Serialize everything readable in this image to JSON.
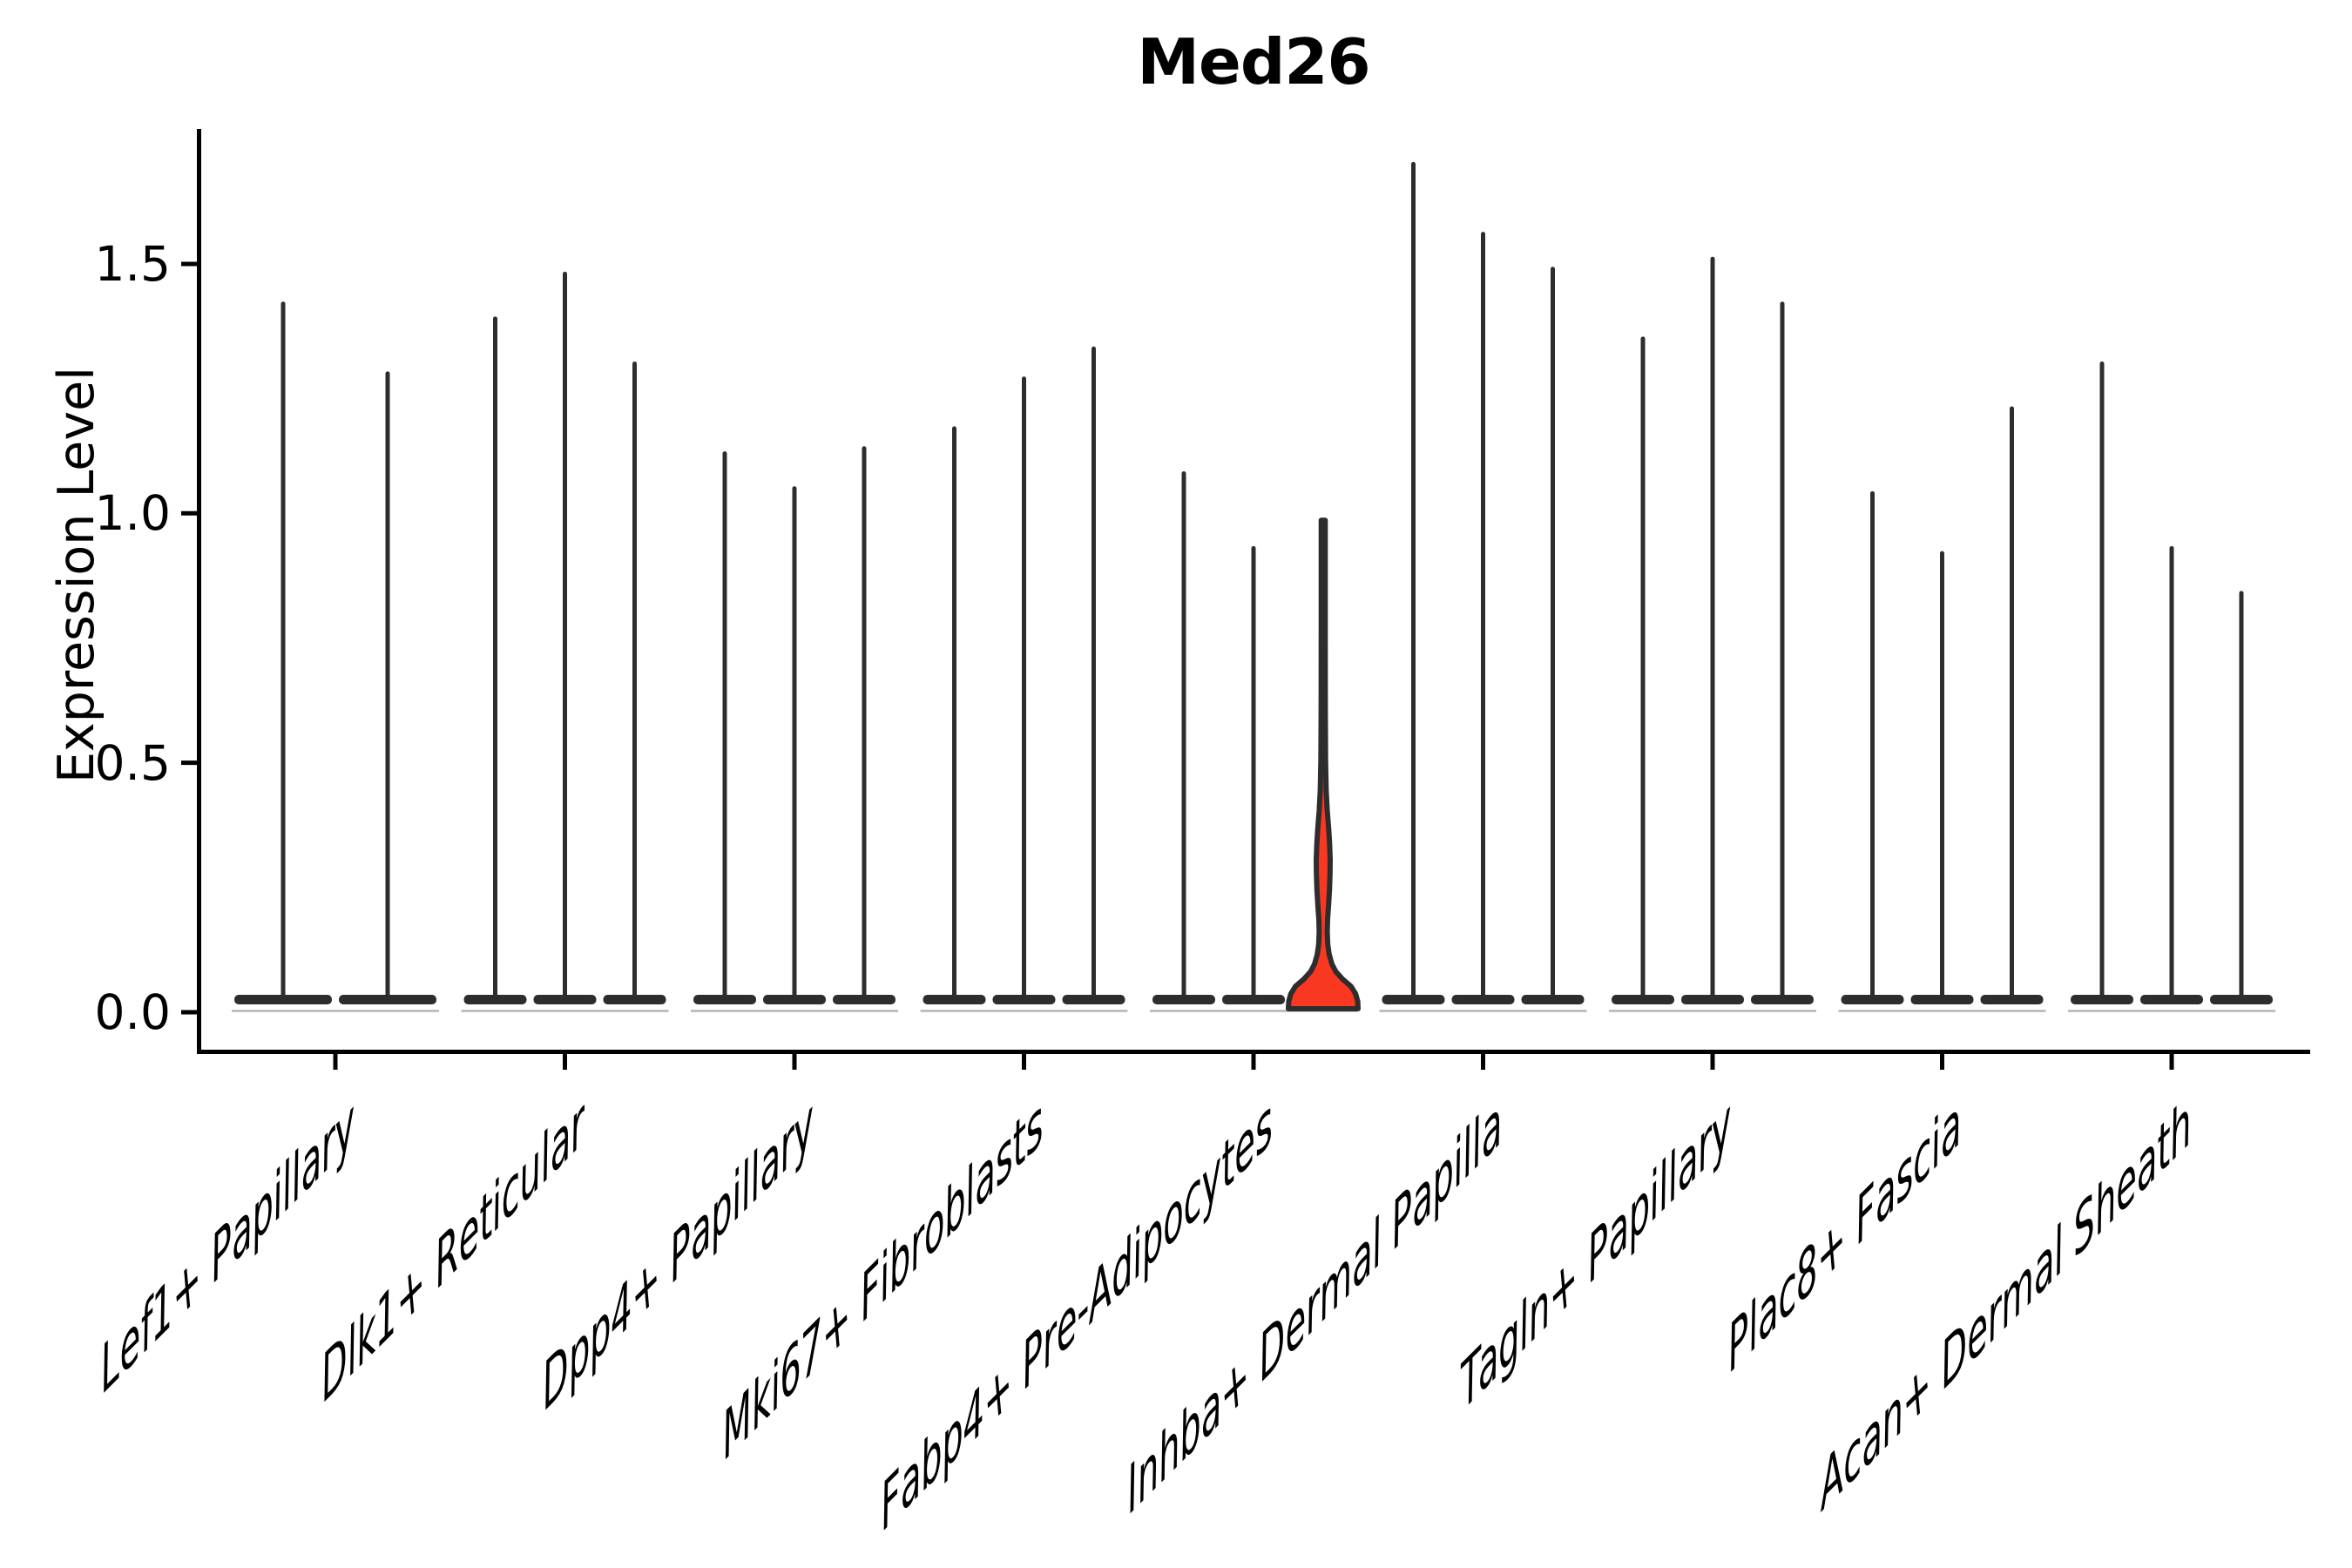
{
  "title": "Med26",
  "y_axis": {
    "label": "Expression Level",
    "tick_labels": [
      "0.0",
      "0.5",
      "1.0",
      "1.5"
    ],
    "tick_values": [
      0.0,
      0.5,
      1.0,
      1.5
    ]
  },
  "chart_data": {
    "type": "violin",
    "title": "Med26",
    "ylabel": "Expression Level",
    "ylim": [
      -0.08,
      1.77
    ],
    "grid": false,
    "legend": "none",
    "categories": [
      "Lef1+ Papillary",
      "Dlk1+ Reticular",
      "Dpp4+ Papillary",
      "Mki67+ Fibroblasts",
      "Fabp4+ Pre-Adipocytes",
      "Inhba+ Dermal Papilla",
      "Tagln+ Papillary",
      "Plac8+ Fascia",
      "Acan+ Dermal Sheath"
    ],
    "groups": [
      {
        "label": "Lef1+ Papillary",
        "violins": [
          {
            "max": 1.42
          },
          {
            "max": 1.28
          }
        ]
      },
      {
        "label": "Dlk1+ Reticular",
        "violins": [
          {
            "max": 1.39
          },
          {
            "max": 1.48
          },
          {
            "max": 1.3
          }
        ]
      },
      {
        "label": "Dpp4+ Papillary",
        "violins": [
          {
            "max": 1.12
          },
          {
            "max": 1.05
          },
          {
            "max": 1.13
          }
        ]
      },
      {
        "label": "Mki67+ Fibroblasts",
        "violins": [
          {
            "max": 1.17
          },
          {
            "max": 1.27
          },
          {
            "max": 1.33
          }
        ]
      },
      {
        "label": "Fabp4+ Pre-Adipocytes",
        "violins": [
          {
            "max": 1.08
          },
          {
            "max": 0.93
          },
          {
            "max": 0.985,
            "highlighted": true
          }
        ]
      },
      {
        "label": "Inhba+ Dermal Papilla",
        "violins": [
          {
            "max": 1.7
          },
          {
            "max": 1.56
          },
          {
            "max": 1.49
          }
        ]
      },
      {
        "label": "Tagln+ Papillary",
        "violins": [
          {
            "max": 1.35
          },
          {
            "max": 1.51
          },
          {
            "max": 1.42
          }
        ]
      },
      {
        "label": "Plac8+ Fascia",
        "violins": [
          {
            "max": 1.04
          },
          {
            "max": 0.92
          },
          {
            "max": 1.21
          }
        ]
      },
      {
        "label": "Acan+ Dermal Sheath",
        "violins": [
          {
            "max": 1.3
          },
          {
            "max": 0.93
          },
          {
            "max": 0.84
          }
        ]
      }
    ],
    "highlight": {
      "color": "#f93822",
      "max": 0.985,
      "density_profile": [
        [
          0.0,
          1.0
        ],
        [
          0.015,
          0.99
        ],
        [
          0.03,
          0.93
        ],
        [
          0.045,
          0.8
        ],
        [
          0.06,
          0.55
        ],
        [
          0.075,
          0.36
        ],
        [
          0.09,
          0.25
        ],
        [
          0.11,
          0.17
        ],
        [
          0.13,
          0.13
        ],
        [
          0.155,
          0.115
        ],
        [
          0.18,
          0.125
        ],
        [
          0.21,
          0.155
        ],
        [
          0.24,
          0.18
        ],
        [
          0.27,
          0.195
        ],
        [
          0.3,
          0.2
        ],
        [
          0.33,
          0.185
        ],
        [
          0.36,
          0.16
        ],
        [
          0.4,
          0.115
        ],
        [
          0.44,
          0.085
        ],
        [
          0.5,
          0.068
        ],
        [
          0.6,
          0.06
        ],
        [
          0.75,
          0.058
        ],
        [
          0.985,
          0.058
        ]
      ]
    },
    "colors": {
      "violin_line": "#2d2d2d",
      "axis": "#000000",
      "base_underline": "#b4b4b4",
      "background": "#ffffff"
    }
  }
}
